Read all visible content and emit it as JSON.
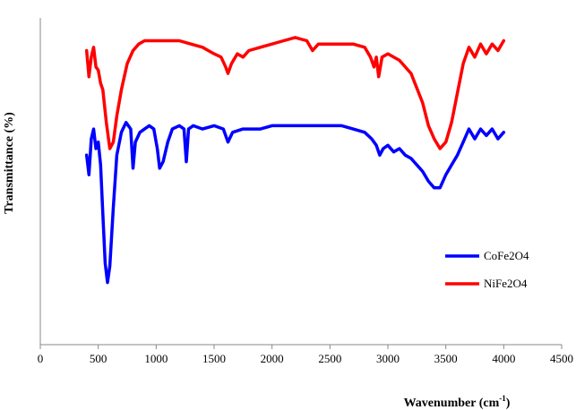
{
  "chart_data": {
    "type": "line",
    "title": "",
    "xlabel_main": "Wavenumber (cm",
    "xlabel_sup": "-1",
    "xlabel_end": ")",
    "ylabel": "Transmittance (%)",
    "xlim": [
      0,
      4500
    ],
    "x_ticks": [
      0,
      500,
      1000,
      1500,
      2000,
      2500,
      3000,
      3500,
      4000,
      4500
    ],
    "x_tick_labels": [
      "0",
      "500",
      "1000",
      "1500",
      "2000",
      "2500",
      "3000",
      "3500",
      "4000",
      "4500"
    ],
    "ylim": [
      0,
      100
    ],
    "y_ticks_shown": false,
    "grid": false,
    "legend_position": "right",
    "series": [
      {
        "name": "CoFe2O4",
        "color": "#0000FF",
        "points": [
          [
            400,
            58
          ],
          [
            420,
            52
          ],
          [
            440,
            63
          ],
          [
            460,
            66
          ],
          [
            480,
            60
          ],
          [
            500,
            62
          ],
          [
            520,
            55
          ],
          [
            540,
            40
          ],
          [
            560,
            25
          ],
          [
            580,
            19
          ],
          [
            600,
            24
          ],
          [
            630,
            42
          ],
          [
            660,
            58
          ],
          [
            700,
            65
          ],
          [
            740,
            68
          ],
          [
            780,
            66
          ],
          [
            800,
            54
          ],
          [
            820,
            62
          ],
          [
            860,
            65
          ],
          [
            900,
            66
          ],
          [
            940,
            67
          ],
          [
            980,
            66
          ],
          [
            1010,
            60
          ],
          [
            1030,
            54
          ],
          [
            1060,
            56
          ],
          [
            1100,
            62
          ],
          [
            1140,
            66
          ],
          [
            1200,
            67
          ],
          [
            1240,
            66
          ],
          [
            1260,
            56
          ],
          [
            1280,
            66
          ],
          [
            1320,
            67
          ],
          [
            1400,
            66
          ],
          [
            1500,
            67
          ],
          [
            1580,
            66
          ],
          [
            1620,
            62
          ],
          [
            1660,
            65
          ],
          [
            1750,
            66
          ],
          [
            1900,
            66
          ],
          [
            2000,
            67
          ],
          [
            2100,
            67
          ],
          [
            2200,
            67
          ],
          [
            2300,
            67
          ],
          [
            2400,
            67
          ],
          [
            2500,
            67
          ],
          [
            2600,
            67
          ],
          [
            2700,
            66
          ],
          [
            2800,
            65
          ],
          [
            2860,
            63
          ],
          [
            2900,
            61
          ],
          [
            2930,
            58
          ],
          [
            2960,
            60
          ],
          [
            3000,
            61
          ],
          [
            3050,
            59
          ],
          [
            3100,
            60
          ],
          [
            3150,
            58
          ],
          [
            3200,
            57
          ],
          [
            3250,
            55
          ],
          [
            3300,
            53
          ],
          [
            3350,
            50
          ],
          [
            3400,
            48
          ],
          [
            3450,
            48
          ],
          [
            3500,
            52
          ],
          [
            3550,
            55
          ],
          [
            3600,
            58
          ],
          [
            3650,
            62
          ],
          [
            3700,
            66
          ],
          [
            3750,
            63
          ],
          [
            3800,
            66
          ],
          [
            3850,
            64
          ],
          [
            3900,
            66
          ],
          [
            3950,
            63
          ],
          [
            4000,
            65
          ]
        ]
      },
      {
        "name": "NiFe2O4",
        "color": "#FF0000",
        "points": [
          [
            400,
            90
          ],
          [
            420,
            82
          ],
          [
            440,
            88
          ],
          [
            460,
            91
          ],
          [
            480,
            85
          ],
          [
            500,
            84
          ],
          [
            520,
            80
          ],
          [
            540,
            78
          ],
          [
            570,
            68
          ],
          [
            600,
            60
          ],
          [
            630,
            62
          ],
          [
            660,
            70
          ],
          [
            700,
            78
          ],
          [
            750,
            86
          ],
          [
            800,
            90
          ],
          [
            850,
            92
          ],
          [
            900,
            93
          ],
          [
            1000,
            93
          ],
          [
            1100,
            93
          ],
          [
            1200,
            93
          ],
          [
            1300,
            92
          ],
          [
            1400,
            91
          ],
          [
            1450,
            90
          ],
          [
            1500,
            89
          ],
          [
            1560,
            88
          ],
          [
            1600,
            85
          ],
          [
            1620,
            83
          ],
          [
            1650,
            86
          ],
          [
            1700,
            89
          ],
          [
            1750,
            88
          ],
          [
            1800,
            90
          ],
          [
            1900,
            91
          ],
          [
            2000,
            92
          ],
          [
            2100,
            93
          ],
          [
            2200,
            94
          ],
          [
            2300,
            93
          ],
          [
            2350,
            90
          ],
          [
            2400,
            92
          ],
          [
            2500,
            92
          ],
          [
            2600,
            92
          ],
          [
            2700,
            92
          ],
          [
            2800,
            91
          ],
          [
            2850,
            88
          ],
          [
            2880,
            85
          ],
          [
            2900,
            88
          ],
          [
            2920,
            82
          ],
          [
            2950,
            88
          ],
          [
            3000,
            89
          ],
          [
            3100,
            87
          ],
          [
            3200,
            83
          ],
          [
            3300,
            74
          ],
          [
            3350,
            67
          ],
          [
            3400,
            63
          ],
          [
            3450,
            60
          ],
          [
            3500,
            62
          ],
          [
            3550,
            68
          ],
          [
            3600,
            77
          ],
          [
            3650,
            86
          ],
          [
            3700,
            91
          ],
          [
            3750,
            88
          ],
          [
            3800,
            92
          ],
          [
            3850,
            89
          ],
          [
            3900,
            92
          ],
          [
            3950,
            90
          ],
          [
            4000,
            93
          ]
        ]
      }
    ]
  }
}
